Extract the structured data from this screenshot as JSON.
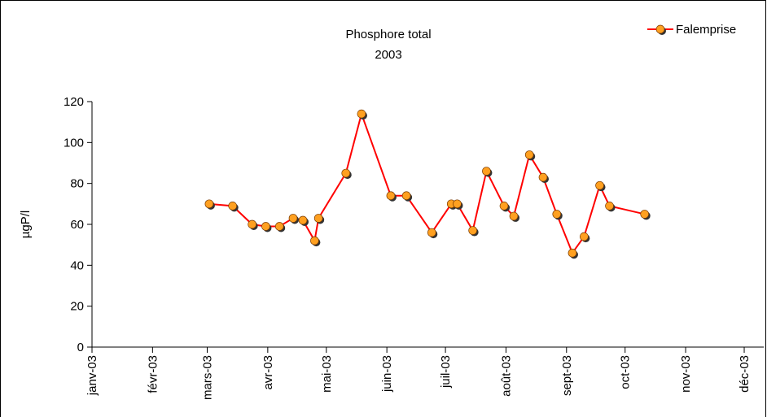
{
  "chart_data": {
    "type": "line",
    "title": "Phosphore total",
    "subtitle": "2003",
    "y_label": "µgP/l",
    "x": [
      60,
      72,
      82,
      89,
      96,
      103,
      108,
      114,
      116,
      130,
      138,
      153,
      161,
      174,
      184,
      187,
      195,
      202,
      211,
      216,
      224,
      231,
      238,
      246,
      252,
      260,
      265,
      283
    ],
    "series": [
      {
        "name": "Falemprise",
        "color": "#ff0000",
        "marker_color": "#ffa020",
        "values": [
          70,
          69,
          60,
          59,
          59,
          63,
          62,
          52,
          63,
          85,
          114,
          74,
          74,
          56,
          70,
          70,
          57,
          86,
          69,
          64,
          94,
          83,
          65,
          46,
          54,
          79,
          69,
          65
        ]
      }
    ],
    "xlim": [
      0,
      344
    ],
    "xticks": [
      {
        "value": 0,
        "label": "janv-03"
      },
      {
        "value": 31,
        "label": "févr-03"
      },
      {
        "value": 59,
        "label": "mars-03"
      },
      {
        "value": 90,
        "label": "avr-03"
      },
      {
        "value": 120,
        "label": "mai-03"
      },
      {
        "value": 151,
        "label": "juin-03"
      },
      {
        "value": 181,
        "label": "juil-03"
      },
      {
        "value": 212,
        "label": "août-03"
      },
      {
        "value": 243,
        "label": "sept-03"
      },
      {
        "value": 273,
        "label": "oct-03"
      },
      {
        "value": 304,
        "label": "nov-03"
      },
      {
        "value": 334,
        "label": "déc-03"
      }
    ],
    "ylim": [
      0,
      120
    ],
    "yticks": [
      0,
      20,
      40,
      60,
      80,
      100,
      120
    ],
    "grid": false,
    "legend": "top-right"
  }
}
